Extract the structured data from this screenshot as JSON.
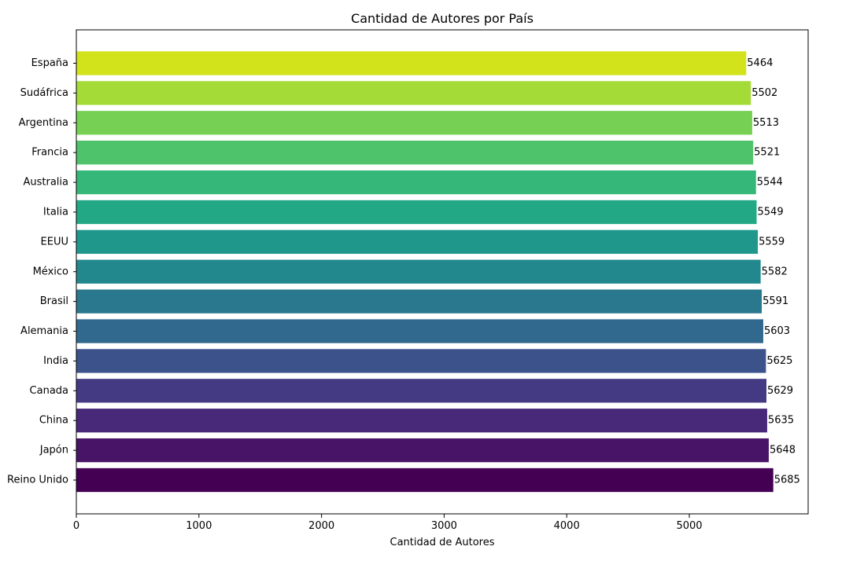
{
  "chart_data": {
    "type": "bar",
    "orientation": "horizontal",
    "title": "Cantidad de Autores por País",
    "xlabel": "Cantidad de Autores",
    "ylabel": "",
    "xlim": [
      0,
      5969.25
    ],
    "xticks": [
      0,
      1000,
      2000,
      3000,
      4000,
      5000
    ],
    "grid": false,
    "categories": [
      "España",
      "Sudáfrica",
      "Argentina",
      "Francia",
      "Australia",
      "Italia",
      "EEUU",
      "México",
      "Brasil",
      "Alemania",
      "India",
      "Canada",
      "China",
      "Japón",
      "Reino Unido"
    ],
    "values": [
      5464,
      5502,
      5513,
      5521,
      5544,
      5549,
      5559,
      5582,
      5591,
      5603,
      5625,
      5629,
      5635,
      5648,
      5685
    ],
    "colors": [
      "#d2e21b",
      "#a5db36",
      "#75d054",
      "#4ec36b",
      "#35b779",
      "#22a884",
      "#1f988b",
      "#23888e",
      "#2a788e",
      "#31688e",
      "#3b528b",
      "#443983",
      "#482878",
      "#481467",
      "#440154"
    ]
  }
}
